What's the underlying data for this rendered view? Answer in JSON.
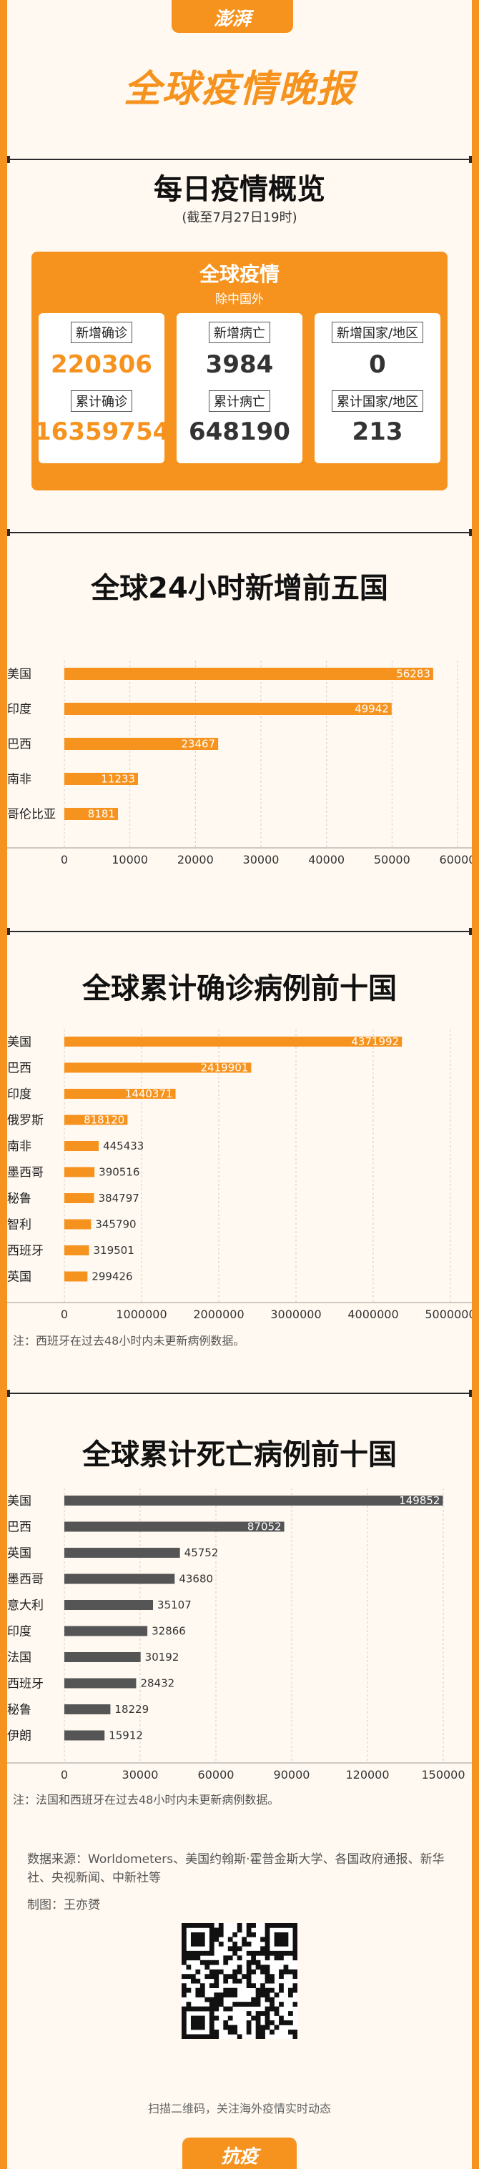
{
  "header": {
    "logo": "澎湃",
    "title": "全球疫情晚报"
  },
  "overview": {
    "title": "每日疫情概览",
    "subtitle": "(截至7月27日19时)",
    "box_title": "全球疫情",
    "box_sub": "除中国外",
    "cards": [
      {
        "l1": "新增确诊",
        "v1": "220306",
        "l2": "累计确诊",
        "v2": "16359754",
        "color": "orange"
      },
      {
        "l1": "新增病亡",
        "v1": "3984",
        "l2": "累计病亡",
        "v2": "648190",
        "color": "dark"
      },
      {
        "l1": "新增国家/地区",
        "v1": "0",
        "l2": "累计国家/地区",
        "v2": "213",
        "color": "dark"
      }
    ]
  },
  "chart_data": [
    {
      "type": "bar",
      "title": "全球24小时新增前五国",
      "categories": [
        "美国",
        "印度",
        "巴西",
        "南非",
        "哥伦比亚"
      ],
      "values": [
        56283,
        49942,
        23467,
        11233,
        8181
      ],
      "xlim": [
        0,
        60000
      ],
      "ticks": [
        "0",
        "10000",
        "20000",
        "30000",
        "40000",
        "50000",
        "60000"
      ],
      "color": "#f6931f"
    },
    {
      "type": "bar",
      "title": "全球累计确诊病例前十国",
      "categories": [
        "美国",
        "巴西",
        "印度",
        "俄罗斯",
        "南非",
        "墨西哥",
        "秘鲁",
        "智利",
        "西班牙",
        "英国"
      ],
      "values": [
        4371992,
        2419901,
        1440371,
        818120,
        445433,
        390516,
        384797,
        345790,
        319501,
        299426
      ],
      "xlim": [
        0,
        5000000
      ],
      "ticks": [
        "0",
        "1000000",
        "2000000",
        "3000000",
        "4000000",
        "5000000"
      ],
      "color": "#f6931f",
      "note": "注：西班牙在过去48小时内未更新病例数据。"
    },
    {
      "type": "bar",
      "title": "全球累计死亡病例前十国",
      "categories": [
        "美国",
        "巴西",
        "英国",
        "墨西哥",
        "意大利",
        "印度",
        "法国",
        "西班牙",
        "秘鲁",
        "伊朗"
      ],
      "values": [
        149852,
        87052,
        45752,
        43680,
        35107,
        32866,
        30192,
        28432,
        18229,
        15912
      ],
      "xlim": [
        0,
        150000
      ],
      "ticks": [
        "0",
        "30000",
        "60000",
        "90000",
        "120000",
        "150000"
      ],
      "color": "#555555",
      "note": "注：法国和西班牙在过去48小时内未更新病例数据。"
    }
  ],
  "footer": {
    "source": "数据来源：Worldometers、美国约翰斯·霍普金斯大学、各国政府通报、新华社、央视新闻、中新社等",
    "author": "制图：王亦赟",
    "qr_caption": "扫描二维码，关注海外疫情实时动态",
    "bottom_label": "抗疫"
  }
}
